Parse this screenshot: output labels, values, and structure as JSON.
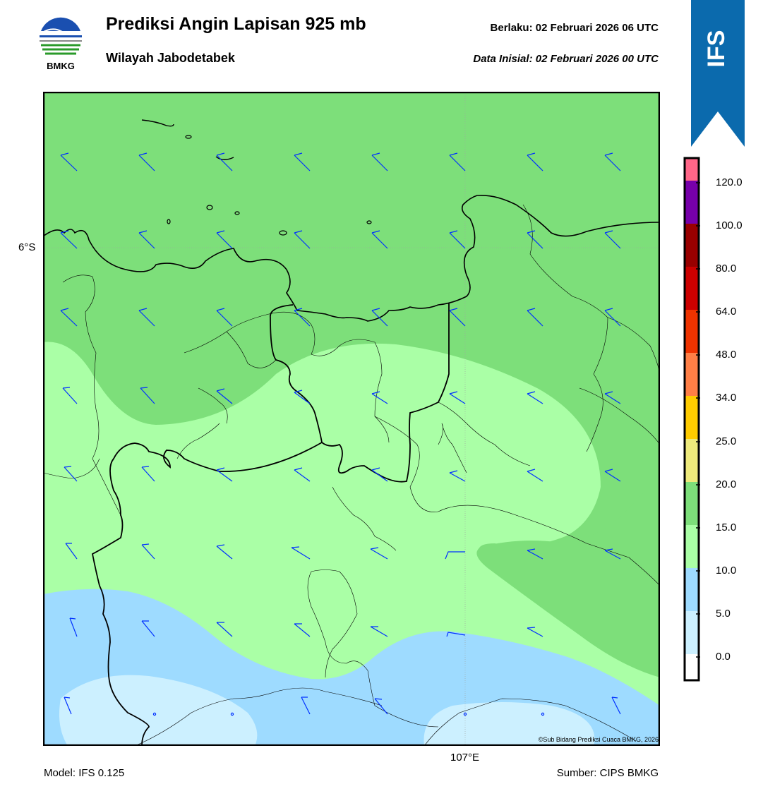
{
  "header": {
    "title": "Prediksi Angin Lapisan 925 mb",
    "subtitle": "Wilayah Jabodetabek",
    "valid": "Berlaku:  02 Februari 2026 06 UTC",
    "initial": "Data Inisial:  02 Februari 2026 00 UTC",
    "logo_text": "BMKG"
  },
  "badge": {
    "text": "IFS",
    "color": "#0b6aad"
  },
  "map": {
    "lat_label": "6°S",
    "lon_label": "107°E",
    "credit": "©Sub Bidang Prediksi Cuaca BMKG, 2026",
    "colors": {
      "light_blue": "#ccf0ff",
      "blue": "#9edbff",
      "light_green": "#aaffa6",
      "green": "#7ddf7a",
      "barb": "#0030ff"
    }
  },
  "colorbar": {
    "levels": [
      "0.0",
      "5.0",
      "10.0",
      "15.0",
      "20.0",
      "25.0",
      "34.0",
      "48.0",
      "64.0",
      "80.0",
      "100.0",
      "120.0"
    ],
    "colors": [
      "#ffffff",
      "#ccf0ff",
      "#9edbff",
      "#aaffa6",
      "#7ddf7a",
      "#eeea7c",
      "#ffcc00",
      "#ff7f46",
      "#ee3300",
      "#cc0000",
      "#990000",
      "#7700aa",
      "#ff6688"
    ]
  },
  "footer": {
    "model": "Model: IFS 0.125",
    "source": "Sumber: CIPS BMKG"
  }
}
